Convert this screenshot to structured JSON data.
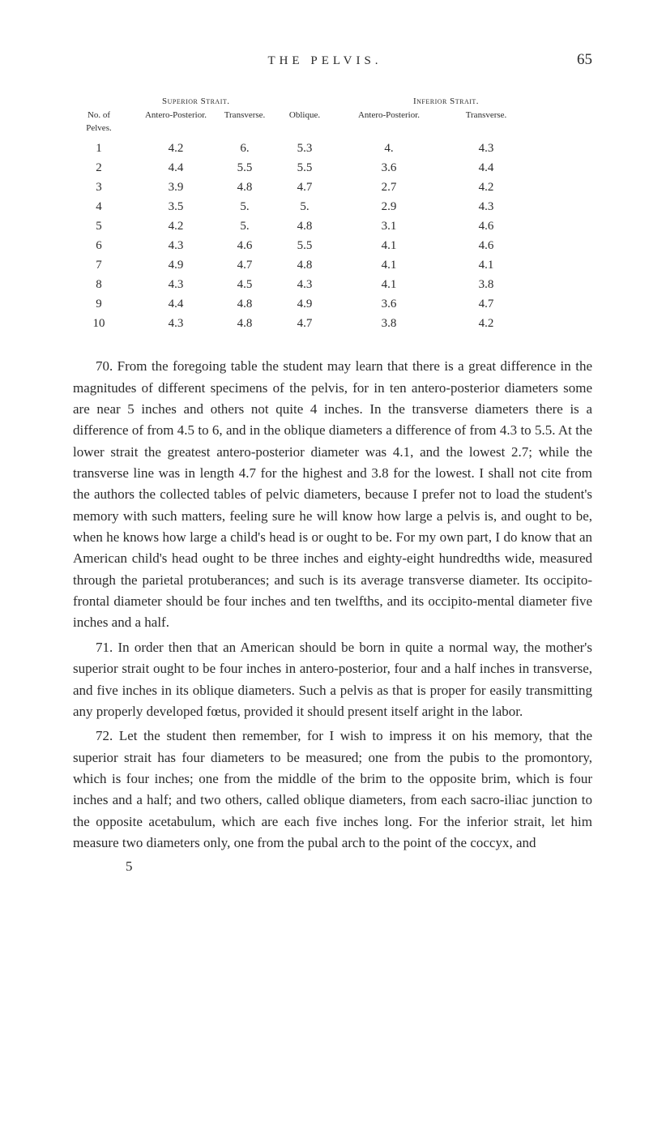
{
  "header": {
    "running_title": "THE PELVIS.",
    "page_number": "65"
  },
  "table": {
    "group_left": "Superior Strait.",
    "group_right": "Inferior Strait.",
    "columns": [
      "No. of Pelves.",
      "Antero-Posterior.",
      "Transverse.",
      "Oblique.",
      "Antero-Posterior.",
      "Transverse."
    ],
    "rows": [
      [
        "1",
        "4.2",
        "6.",
        "5.3",
        "4.",
        "4.3"
      ],
      [
        "2",
        "4.4",
        "5.5",
        "5.5",
        "3.6",
        "4.4"
      ],
      [
        "3",
        "3.9",
        "4.8",
        "4.7",
        "2.7",
        "4.2"
      ],
      [
        "4",
        "3.5",
        "5.",
        "5.",
        "2.9",
        "4.3"
      ],
      [
        "5",
        "4.2",
        "5.",
        "4.8",
        "3.1",
        "4.6"
      ],
      [
        "6",
        "4.3",
        "4.6",
        "5.5",
        "4.1",
        "4.6"
      ],
      [
        "7",
        "4.9",
        "4.7",
        "4.8",
        "4.1",
        "4.1"
      ],
      [
        "8",
        "4.3",
        "4.5",
        "4.3",
        "4.1",
        "3.8"
      ],
      [
        "9",
        "4.4",
        "4.8",
        "4.9",
        "3.6",
        "4.7"
      ],
      [
        "10",
        "4.3",
        "4.8",
        "4.7",
        "3.8",
        "4.2"
      ]
    ]
  },
  "paragraphs": {
    "p1": "70. From the foregoing table the student may learn that there is a great difference in the magnitudes of different specimens of the pelvis, for in ten antero-posterior diameters some are near 5 inches and others not quite 4 inches. In the transverse diameters there is a difference of from 4.5 to 6, and in the oblique diameters a difference of from 4.3 to 5.5. At the lower strait the greatest antero-posterior diameter was 4.1, and the lowest 2.7; while the transverse line was in length 4.7 for the highest and 3.8 for the lowest. I shall not cite from the authors the collected tables of pelvic diameters, because I prefer not to load the student's memory with such matters, feeling sure he will know how large a pelvis is, and ought to be, when he knows how large a child's head is or ought to be. For my own part, I do know that an American child's head ought to be three inches and eighty-eight hundredths wide, measured through the parietal protuberances; and such is its average transverse diameter. Its occipito-frontal diameter should be four inches and ten twelfths, and its occipito-mental diameter five inches and a half.",
    "p2": "71. In order then that an American should be born in quite a normal way, the mother's superior strait ought to be four inches in antero-posterior, four and a half inches in transverse, and five inches in its oblique diameters. Such a pelvis as that is proper for easily transmitting any properly developed fœtus, provided it should present itself aright in the labor.",
    "p3": "72. Let the student then remember, for I wish to impress it on his memory, that the superior strait has four diameters to be measured; one from the pubis to the promontory, which is four inches; one from the middle of the brim to the opposite brim, which is four inches and a half; and two others, called oblique diameters, from each sacro-iliac junction to the opposite acetabulum, which are each five inches long. For the inferior strait, let him measure two diameters only, one from the pubal arch to the point of the coccyx, and"
  },
  "footer": {
    "sig": "5"
  }
}
